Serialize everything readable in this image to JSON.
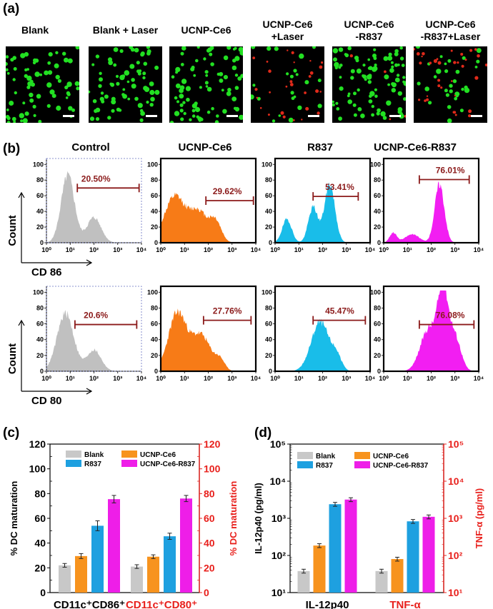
{
  "panel_a": {
    "label": "(a)",
    "images": [
      {
        "title": [
          "Blank"
        ],
        "cells": {
          "green": 70,
          "red": 0
        }
      },
      {
        "title": [
          "Blank + Laser"
        ],
        "cells": {
          "green": 70,
          "red": 0
        }
      },
      {
        "title": [
          "UCNP-Ce6"
        ],
        "cells": {
          "green": 80,
          "red": 0
        }
      },
      {
        "title": [
          "UCNP-Ce6",
          "+Laser"
        ],
        "cells": {
          "green": 22,
          "red": 28
        }
      },
      {
        "title": [
          "UCNP-Ce6",
          "-R837"
        ],
        "cells": {
          "green": 90,
          "red": 4
        }
      },
      {
        "title": [
          "UCNP-Ce6",
          "-R837+Laser"
        ],
        "cells": {
          "green": 30,
          "red": 34
        }
      }
    ],
    "colors": {
      "green": "#22e022",
      "red": "#e02a1a",
      "background": "#000000",
      "scalebar": "#ffffff"
    }
  },
  "panel_b": {
    "label": "(b)",
    "columns": [
      "Control",
      "UCNP-Ce6",
      "R837",
      "UCNP-Ce6-R837"
    ],
    "rows": [
      {
        "axis_label": "CD 86",
        "count_label": "Count",
        "percentages": [
          "20.50%",
          "29.62%",
          "53.41%",
          "76.01%"
        ]
      },
      {
        "axis_label": "CD 80",
        "count_label": "Count",
        "percentages": [
          "20.6%",
          "27.76%",
          "45.47%",
          "76.08%"
        ]
      }
    ],
    "colors": [
      "#c0c0c0",
      "#f77b17",
      "#19bde9",
      "#f21ef2"
    ],
    "gate_color": "#8b1a1a",
    "x_tick_labels": [
      "10⁰",
      "10¹",
      "10²",
      "10³",
      "10⁴"
    ],
    "y_tick_labels": [
      "0",
      "20",
      "40",
      "60",
      "80",
      "100"
    ]
  },
  "panel_c": {
    "label": "(c)",
    "chart_data": {
      "type": "bar",
      "categories": [
        "CD11c⁺CD86⁺",
        "CD11c⁺CD80⁺"
      ],
      "category_colors": [
        "#000000",
        "#e8201c"
      ],
      "series": [
        {
          "name": "Blank",
          "values": [
            22,
            21
          ],
          "errors": [
            1.5,
            1.5
          ],
          "color": "#c8c8c8"
        },
        {
          "name": "UCNP-Ce6",
          "values": [
            29.5,
            29
          ],
          "errors": [
            2,
            1.5
          ],
          "color": "#f7931e"
        },
        {
          "name": "R837",
          "values": [
            54,
            45.5
          ],
          "errors": [
            4,
            2.5
          ],
          "color": "#1ea0e0"
        },
        {
          "name": "UCNP-Ce6-R837",
          "values": [
            75.5,
            76
          ],
          "errors": [
            3,
            2.5
          ],
          "color": "#ee1ee8"
        }
      ],
      "ylabel": "% DC maturation",
      "ylabel_right": "% DC maturation",
      "ylim": [
        0,
        120
      ],
      "yticks": [
        "0",
        "20",
        "40",
        "60",
        "80",
        "100",
        "120"
      ],
      "legend": "top-left, two columns"
    }
  },
  "panel_d": {
    "label": "(d)",
    "chart_data": {
      "type": "bar",
      "scale": "log",
      "categories": [
        "IL-12p40",
        "TNF-α"
      ],
      "category_colors": [
        "#000000",
        "#e8201c"
      ],
      "series": [
        {
          "name": "Blank",
          "values": [
            38,
            38
          ],
          "color": "#c8c8c8"
        },
        {
          "name": "UCNP-Ce6",
          "values": [
            185,
            80
          ],
          "color": "#f7931e"
        },
        {
          "name": "R837",
          "values": [
            2400,
            830
          ],
          "color": "#1ea0e0"
        },
        {
          "name": "UCNP-Ce6-R837",
          "values": [
            3200,
            1100
          ],
          "color": "#ee1ee8"
        }
      ],
      "ylabel": "IL-12p40 (pg/ml)",
      "ylabel_right": "TNF-α (pg/ml)",
      "ylim": [
        10,
        100000
      ],
      "yticks": [
        "10¹",
        "10²",
        "10³",
        "10⁴",
        "10⁵"
      ],
      "legend": "top-left, two columns"
    }
  }
}
